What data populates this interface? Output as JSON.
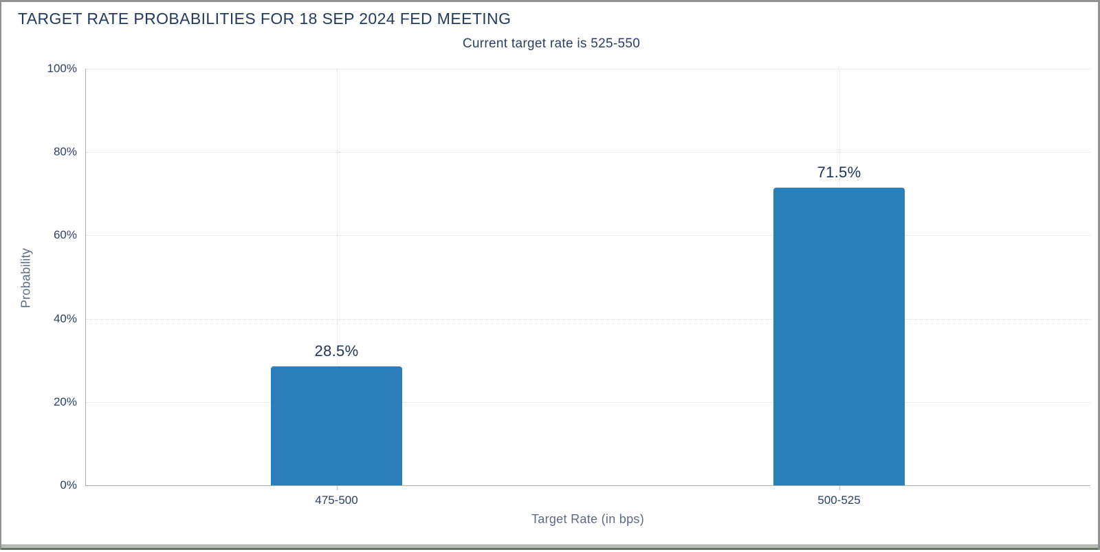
{
  "window": {
    "title": "TARGET RATE PROBABILITIES FOR 18 SEP 2024 FED MEETING",
    "subtitle": "Current target rate is 525-550"
  },
  "chart_data": {
    "type": "bar",
    "title": "TARGET RATE PROBABILITIES FOR 18 SEP 2024 FED MEETING",
    "subtitle": "Current target rate is 525-550",
    "categories": [
      "475-500",
      "500-525"
    ],
    "values": [
      28.5,
      71.5
    ],
    "value_labels": [
      "28.5%",
      "71.5%"
    ],
    "xlabel": "Target Rate (in bps)",
    "ylabel": "Probability",
    "ylim": [
      0,
      100
    ],
    "yticks": [
      0,
      20,
      40,
      60,
      80,
      100
    ],
    "ytick_labels": [
      "0%",
      "20%",
      "40%",
      "60%",
      "80%",
      "100%"
    ],
    "grid": true,
    "legend": "none",
    "bar_color": "#2b7fb8",
    "title_color": "#243a5e",
    "label_color": "#1f3354",
    "axis_title_color": "#5a6a87"
  }
}
